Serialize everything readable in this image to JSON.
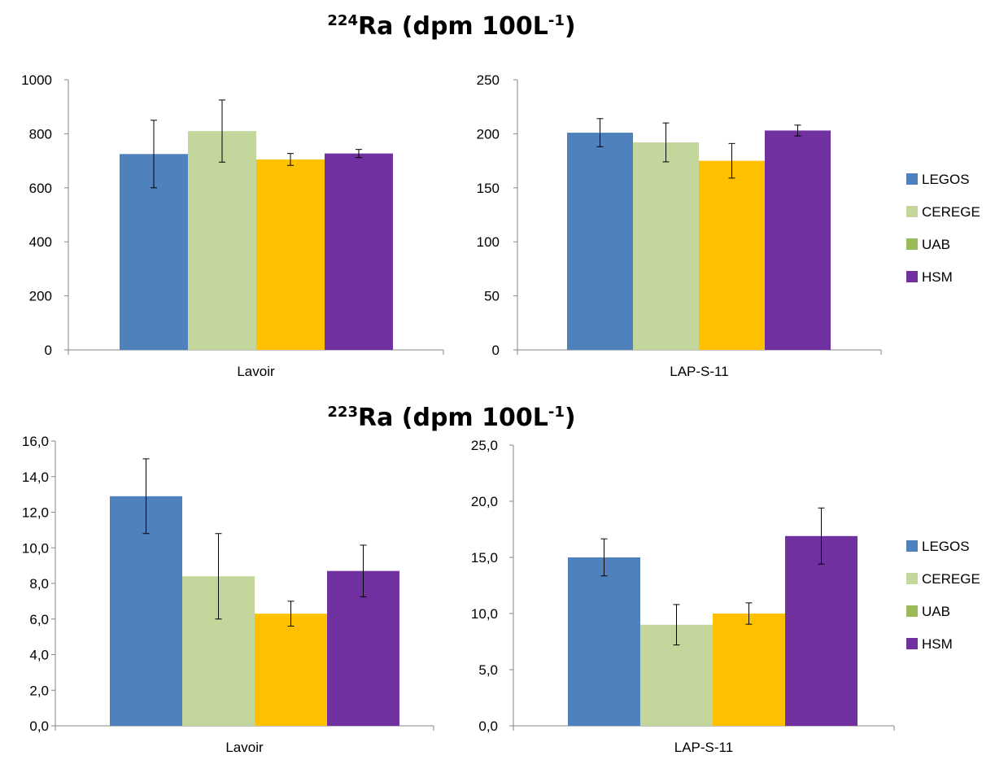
{
  "titles": [
    {
      "sup": "224",
      "main": "Ra (dpm 100L",
      "unit_sup": "-1",
      "close": ")"
    },
    {
      "sup": "223",
      "main": "Ra (dpm 100L",
      "unit_sup": "-1",
      "close": ")"
    }
  ],
  "colors": {
    "LEGOS": "#4F81BD",
    "CEREGE": "#C3D69B",
    "UAB": "#9BBB59",
    "HSM": "#7030A0",
    "bar3_fill": "#FFC000"
  },
  "chart_data": [
    {
      "type": "bar",
      "group": "224Ra",
      "categories": [
        "Lavoir"
      ],
      "ylim": [
        0,
        1000
      ],
      "yticks": [
        "0",
        "200",
        "400",
        "600",
        "800",
        "1000"
      ],
      "ytick_values": [
        0,
        200,
        400,
        600,
        800,
        1000
      ],
      "series": [
        {
          "name": "LEGOS",
          "values": [
            725
          ],
          "err": [
            125
          ]
        },
        {
          "name": "CEREGE",
          "values": [
            810
          ],
          "err": [
            115
          ]
        },
        {
          "name": "UAB",
          "values": [
            705
          ],
          "err": [
            22
          ]
        },
        {
          "name": "HSM",
          "values": [
            727
          ],
          "err": [
            15
          ]
        }
      ]
    },
    {
      "type": "bar",
      "group": "224Ra",
      "categories": [
        "LAP-S-11"
      ],
      "ylim": [
        0,
        250
      ],
      "yticks": [
        "0",
        "50",
        "100",
        "150",
        "200",
        "250"
      ],
      "ytick_values": [
        0,
        50,
        100,
        150,
        200,
        250
      ],
      "series": [
        {
          "name": "LEGOS",
          "values": [
            201
          ],
          "err": [
            13
          ]
        },
        {
          "name": "CEREGE",
          "values": [
            192
          ],
          "err": [
            18
          ]
        },
        {
          "name": "UAB",
          "values": [
            175
          ],
          "err": [
            16
          ]
        },
        {
          "name": "HSM",
          "values": [
            203
          ],
          "err": [
            5
          ]
        }
      ]
    },
    {
      "type": "bar",
      "group": "223Ra",
      "categories": [
        "Lavoir"
      ],
      "ylim": [
        0,
        16
      ],
      "yticks": [
        "0,0",
        "2,0",
        "4,0",
        "6,0",
        "8,0",
        "10,0",
        "12,0",
        "14,0",
        "16,0"
      ],
      "ytick_values": [
        0,
        2,
        4,
        6,
        8,
        10,
        12,
        14,
        16
      ],
      "series": [
        {
          "name": "LEGOS",
          "values": [
            12.9
          ],
          "err": [
            2.1
          ]
        },
        {
          "name": "CEREGE",
          "values": [
            8.4
          ],
          "err": [
            2.4
          ]
        },
        {
          "name": "UAB",
          "values": [
            6.3
          ],
          "err": [
            0.7
          ]
        },
        {
          "name": "HSM",
          "values": [
            8.7
          ],
          "err": [
            1.45
          ]
        }
      ]
    },
    {
      "type": "bar",
      "group": "223Ra",
      "categories": [
        "LAP-S-11"
      ],
      "ylim": [
        0,
        25
      ],
      "yticks": [
        "0,0",
        "5,0",
        "10,0",
        "15,0",
        "20,0",
        "25,0"
      ],
      "ytick_values": [
        0,
        5,
        10,
        15,
        20,
        25
      ],
      "series": [
        {
          "name": "LEGOS",
          "values": [
            15.0
          ],
          "err": [
            1.65
          ]
        },
        {
          "name": "CEREGE",
          "values": [
            9.0
          ],
          "err": [
            1.8
          ]
        },
        {
          "name": "UAB",
          "values": [
            10.0
          ],
          "err": [
            0.95
          ]
        },
        {
          "name": "HSM",
          "values": [
            16.9
          ],
          "err": [
            2.5
          ]
        }
      ]
    }
  ],
  "legends": [
    {
      "entries": [
        "LEGOS",
        "CEREGE",
        "UAB",
        "HSM"
      ]
    },
    {
      "entries": [
        "LEGOS",
        "CEREGE",
        "UAB",
        "HSM"
      ]
    }
  ]
}
